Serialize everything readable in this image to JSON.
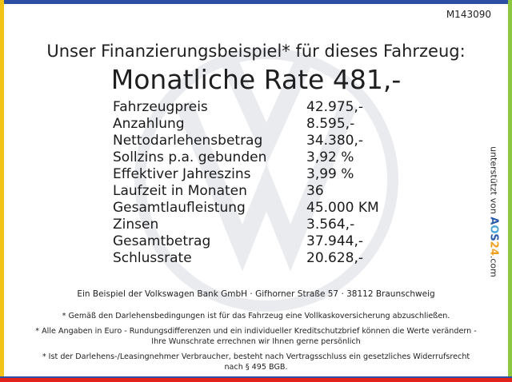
{
  "frame": {
    "top": "#2c4fa3",
    "left": "#f2c418",
    "right": "#8dc63f",
    "bottom": "#e2231a"
  },
  "offer_code": "M143090",
  "headline": "Unser Finanzierungsbeispiel* für dieses Fahrzeug:",
  "monthly_rate": "Monatliche Rate 481,-",
  "finance_rows": [
    {
      "label": "Fahrzeugpreis",
      "value": "42.975,-"
    },
    {
      "label": "Anzahlung",
      "value": "8.595,-"
    },
    {
      "label": "Nettodarlehensbetrag",
      "value": "34.380,-"
    },
    {
      "label": "Sollzins p.a. gebunden",
      "value": "3,92 %"
    },
    {
      "label": "Effektiver Jahreszins",
      "value": "3,99 %"
    },
    {
      "label": "Laufzeit in Monaten",
      "value": "36"
    },
    {
      "label": "Gesamtlaufleistung",
      "value": "45.000 KM"
    },
    {
      "label": "Zinsen",
      "value": "3.564,-"
    },
    {
      "label": "Gesamtbetrag",
      "value": "37.944,-"
    },
    {
      "label": "Schlussrate",
      "value": "20.628,-"
    }
  ],
  "lender_line": "Ein Beispiel der Volkswagen Bank GmbH · Gifhorner Straße 57 · 38112 Braunschweig",
  "footnotes": [
    "* Gemäß den Darlehensbedingungen ist für das Fahrzeug eine Vollkaskoversicherung abzuschließen.",
    "* Alle Angaben in Euro - Rundungsdifferenzen und ein individueller Kreditschutzbrief können die Werte verändern - Ihre Wunschrate errechnen wir Ihnen gerne persönlich",
    "* Ist der Darlehens-/Leasingnehmer Verbraucher, besteht nach Vertragsschluss ein gesetzliches Widerrufsrecht nach § 495 BGB."
  ],
  "sidebar": {
    "prefix": "unterstützt von",
    "brand_a": "A",
    "brand_o": "O",
    "brand_s": "S",
    "brand_n": "24",
    "suffix": ".com"
  },
  "watermark_icon": "vw-logo-icon"
}
